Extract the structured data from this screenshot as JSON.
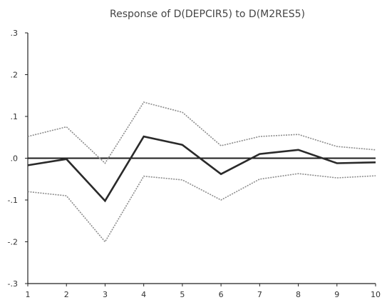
{
  "chart_data": {
    "type": "line",
    "title": "Response of D(DEPCIR5) to D(M2RES5)",
    "xlabel": "",
    "ylabel": "",
    "x": [
      1,
      2,
      3,
      4,
      5,
      6,
      7,
      8,
      9,
      10
    ],
    "xlim": [
      1,
      10
    ],
    "ylim": [
      -0.3,
      0.3
    ],
    "x_ticks": [
      "1",
      "2",
      "3",
      "4",
      "5",
      "6",
      "7",
      "8",
      "9",
      "10"
    ],
    "y_ticks": [
      {
        "value": 0.3,
        "label": ".3"
      },
      {
        "value": 0.2,
        "label": ".2"
      },
      {
        "value": 0.1,
        "label": ".1"
      },
      {
        "value": 0.0,
        "label": ".0"
      },
      {
        "value": -0.1,
        "label": "-.1"
      },
      {
        "value": -0.2,
        "label": "-.2"
      },
      {
        "value": -0.3,
        "label": "-.3"
      }
    ],
    "zero_line": 0,
    "grid": false,
    "legend": "none",
    "series": [
      {
        "role": "response",
        "color": "#2a2a2a",
        "values": [
          -0.017,
          -0.002,
          -0.102,
          0.052,
          0.032,
          -0.038,
          0.01,
          0.02,
          -0.012,
          -0.01
        ]
      },
      {
        "role": "upper-band",
        "color": "#8c8c8c",
        "values": [
          0.052,
          0.075,
          -0.012,
          0.134,
          0.11,
          0.03,
          0.052,
          0.057,
          0.028,
          0.02
        ]
      },
      {
        "role": "lower-band",
        "color": "#8c8c8c",
        "values": [
          -0.08,
          -0.09,
          -0.2,
          -0.043,
          -0.052,
          -0.1,
          -0.05,
          -0.037,
          -0.047,
          -0.042
        ]
      }
    ]
  }
}
